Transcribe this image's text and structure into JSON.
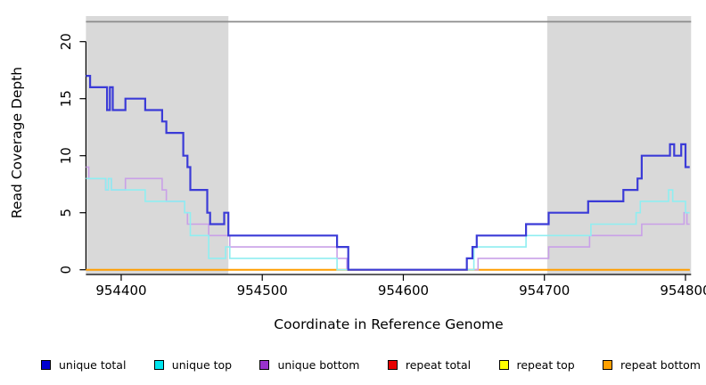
{
  "chart_data": {
    "type": "line",
    "style": "step-after",
    "title": "",
    "xlabel": "Coordinate in Reference Genome",
    "ylabel": "Read Coverage Depth",
    "xlim": [
      954375,
      954804
    ],
    "ylim": [
      0,
      22
    ],
    "x_ticks": [
      954400,
      954500,
      954600,
      954700,
      954800
    ],
    "y_ticks": [
      0,
      5,
      10,
      15,
      20
    ],
    "grid": false,
    "shaded_regions": [
      {
        "x0": 954375,
        "x1": 954476,
        "color": "#d9d9d9"
      },
      {
        "x0": 954702,
        "x1": 954804,
        "color": "#d9d9d9"
      }
    ],
    "top_rule": {
      "y_value": 22,
      "color": "#8c8c8c"
    },
    "axis_color": "#000000",
    "series": [
      {
        "name": "repeat total",
        "line_color": "#e60000",
        "width": 1.5,
        "points": [
          [
            954375,
            0
          ],
          [
            954803,
            0
          ]
        ]
      },
      {
        "name": "repeat top",
        "line_color": "#ffff00",
        "width": 1.5,
        "points": [
          [
            954375,
            0
          ],
          [
            954803,
            0
          ]
        ]
      },
      {
        "name": "repeat bottom",
        "line_color": "#ff9d00",
        "width": 2,
        "points": [
          [
            954375,
            0
          ],
          [
            954803,
            0
          ]
        ]
      },
      {
        "name": "unique bottom",
        "line_color": "#c9a0e8",
        "width": 1.6,
        "points": [
          [
            954375,
            9
          ],
          [
            954377,
            8
          ],
          [
            954389,
            7
          ],
          [
            954391,
            8
          ],
          [
            954393,
            7
          ],
          [
            954403,
            8
          ],
          [
            954429,
            7
          ],
          [
            954432,
            6
          ],
          [
            954445,
            5
          ],
          [
            954447,
            4
          ],
          [
            954462,
            3
          ],
          [
            954477,
            2
          ],
          [
            954553,
            1
          ],
          [
            954560,
            0
          ],
          [
            954653,
            1
          ],
          [
            954703,
            2
          ],
          [
            954732,
            3
          ],
          [
            954769,
            4
          ],
          [
            954799,
            5
          ],
          [
            954801,
            4
          ],
          [
            954803,
            4
          ]
        ]
      },
      {
        "name": "unique top",
        "line_color": "#8feef1",
        "width": 1.6,
        "points": [
          [
            954375,
            8
          ],
          [
            954389,
            7
          ],
          [
            954391,
            8
          ],
          [
            954393,
            7
          ],
          [
            954417,
            6
          ],
          [
            954445,
            5
          ],
          [
            954449,
            3
          ],
          [
            954462,
            1
          ],
          [
            954474,
            2
          ],
          [
            954477,
            1
          ],
          [
            954553,
            0
          ],
          [
            954650,
            2
          ],
          [
            954687,
            3
          ],
          [
            954733,
            4
          ],
          [
            954765,
            5
          ],
          [
            954768,
            6
          ],
          [
            954788,
            7
          ],
          [
            954791,
            6
          ],
          [
            954800,
            5
          ],
          [
            954803,
            5
          ]
        ]
      },
      {
        "name": "unique total",
        "line_color": "#3b3bd7",
        "width": 2.2,
        "points": [
          [
            954375,
            17
          ],
          [
            954378,
            16
          ],
          [
            954390,
            14
          ],
          [
            954392,
            16
          ],
          [
            954394,
            14
          ],
          [
            954403,
            15
          ],
          [
            954417,
            14
          ],
          [
            954429,
            13
          ],
          [
            954432,
            12
          ],
          [
            954444,
            10
          ],
          [
            954447,
            9
          ],
          [
            954449,
            7
          ],
          [
            954461,
            5
          ],
          [
            954463,
            4
          ],
          [
            954473,
            5
          ],
          [
            954476,
            3
          ],
          [
            954553,
            2
          ],
          [
            954561,
            0
          ],
          [
            954645,
            1
          ],
          [
            954649,
            2
          ],
          [
            954652,
            3
          ],
          [
            954687,
            4
          ],
          [
            954703,
            5
          ],
          [
            954731,
            6
          ],
          [
            954756,
            7
          ],
          [
            954766,
            8
          ],
          [
            954769,
            10
          ],
          [
            954789,
            11
          ],
          [
            954792,
            10
          ],
          [
            954797,
            11
          ],
          [
            954800,
            9
          ],
          [
            954803,
            9
          ]
        ]
      }
    ],
    "legend": [
      {
        "label": "unique total",
        "color": "#0000d0"
      },
      {
        "label": "unique top",
        "color": "#00e5ee"
      },
      {
        "label": "unique bottom",
        "color": "#9932cc"
      },
      {
        "label": "repeat total",
        "color": "#e60000"
      },
      {
        "label": "repeat top",
        "color": "#ffff00"
      },
      {
        "label": "repeat bottom",
        "color": "#ffa000"
      }
    ],
    "legend_position": "bottom"
  }
}
